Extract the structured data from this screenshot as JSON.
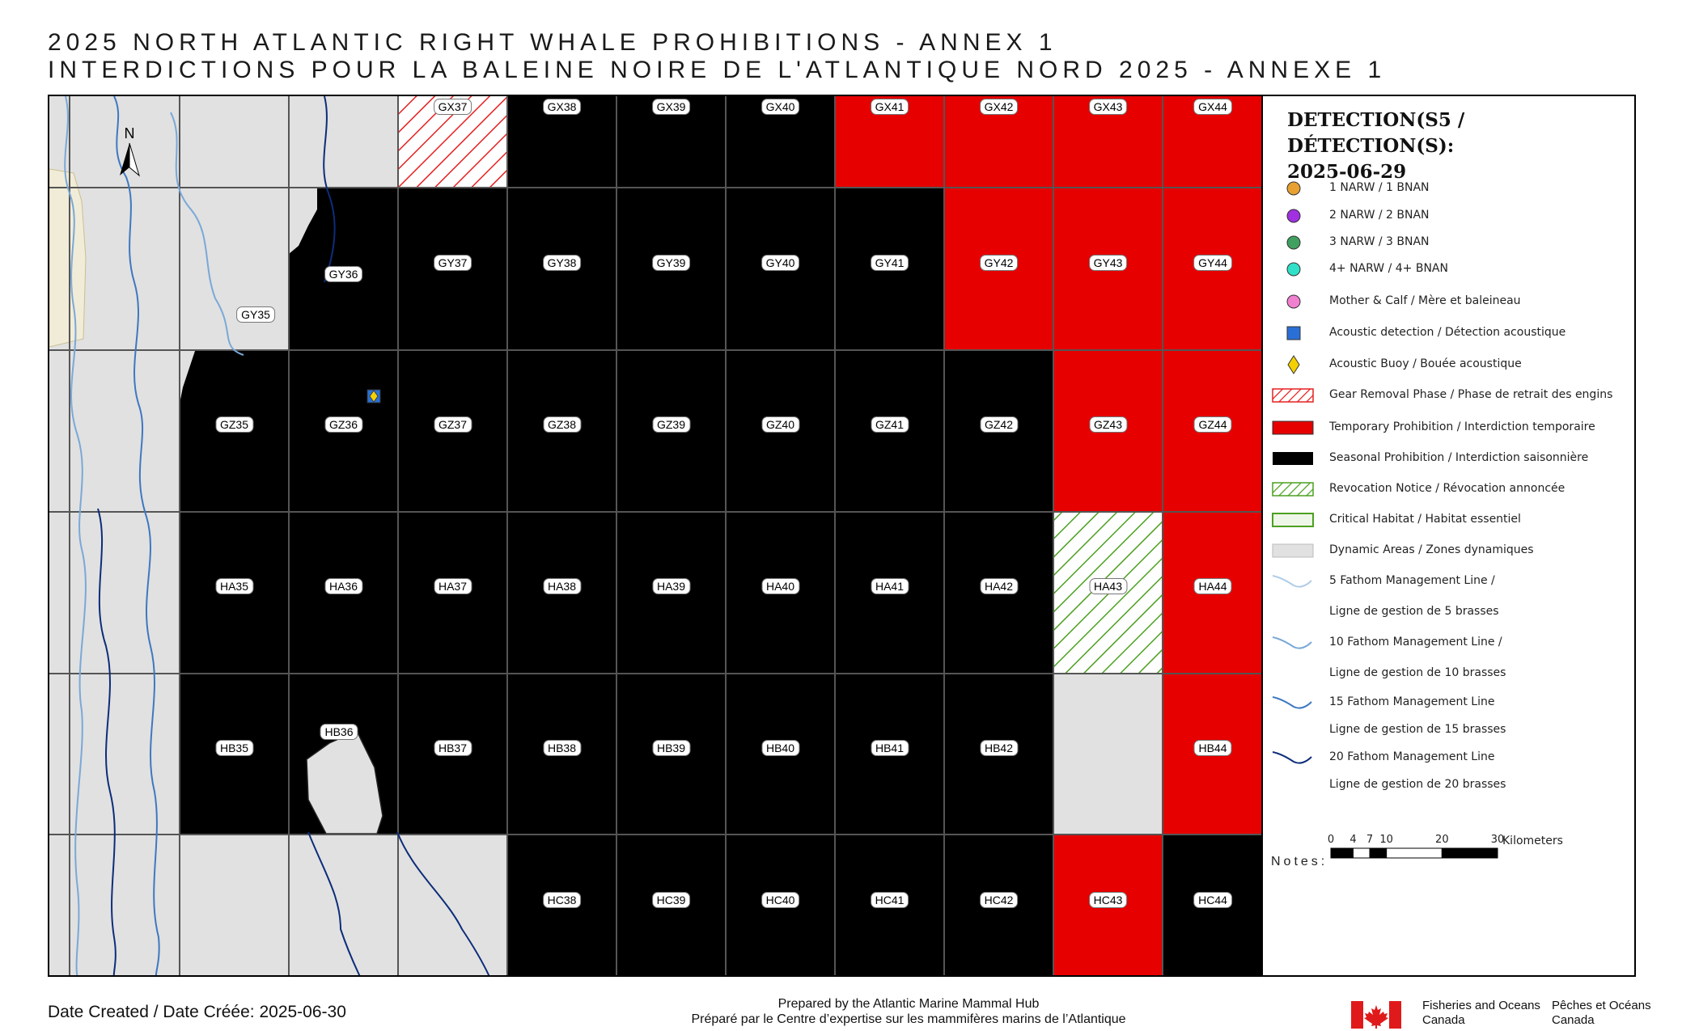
{
  "title_en": "2025 NORTH ATLANTIC RIGHT WHALE PROHIBITIONS - ANNEX 1",
  "title_fr": "INTERDICTIONS POUR LA BALEINE NOIRE DE L'ATLANTIQUE NORD 2025 - ANNEXE 1",
  "north_label": "N",
  "columns": [
    "35",
    "36",
    "37",
    "38",
    "39",
    "40",
    "41",
    "42",
    "43",
    "44"
  ],
  "grid": [
    {
      "row": "GX",
      "cells": [
        {
          "id": "GX35",
          "status": "none",
          "label": false
        },
        {
          "id": "GX36",
          "status": "none",
          "label": false
        },
        {
          "id": "GX37",
          "status": "gear-removal",
          "label": true
        },
        {
          "id": "GX38",
          "status": "seasonal",
          "label": true
        },
        {
          "id": "GX39",
          "status": "seasonal",
          "label": true
        },
        {
          "id": "GX40",
          "status": "seasonal",
          "label": true
        },
        {
          "id": "GX41",
          "status": "temporary",
          "label": true
        },
        {
          "id": "GX42",
          "status": "temporary",
          "label": true
        },
        {
          "id": "GX43",
          "status": "temporary",
          "label": true
        },
        {
          "id": "GX44",
          "status": "temporary",
          "label": true
        }
      ]
    },
    {
      "row": "GY",
      "cells": [
        {
          "id": "GY35",
          "status": "none",
          "label": true
        },
        {
          "id": "GY36",
          "status": "seasonal",
          "label": true
        },
        {
          "id": "GY37",
          "status": "seasonal",
          "label": true
        },
        {
          "id": "GY38",
          "status": "seasonal",
          "label": true
        },
        {
          "id": "GY39",
          "status": "seasonal",
          "label": true
        },
        {
          "id": "GY40",
          "status": "seasonal",
          "label": true
        },
        {
          "id": "GY41",
          "status": "seasonal",
          "label": true
        },
        {
          "id": "GY42",
          "status": "temporary",
          "label": true
        },
        {
          "id": "GY43",
          "status": "temporary",
          "label": true
        },
        {
          "id": "GY44",
          "status": "temporary",
          "label": true
        }
      ]
    },
    {
      "row": "GZ",
      "cells": [
        {
          "id": "GZ34",
          "status": "none",
          "label": false
        },
        {
          "id": "GZ35",
          "status": "seasonal",
          "label": true
        },
        {
          "id": "GZ36",
          "status": "seasonal",
          "label": true
        },
        {
          "id": "GZ37",
          "status": "seasonal",
          "label": true
        },
        {
          "id": "GZ38",
          "status": "seasonal",
          "label": true
        },
        {
          "id": "GZ39",
          "status": "seasonal",
          "label": true
        },
        {
          "id": "GZ40",
          "status": "seasonal",
          "label": true
        },
        {
          "id": "GZ41",
          "status": "seasonal",
          "label": true
        },
        {
          "id": "GZ42",
          "status": "seasonal",
          "label": true
        },
        {
          "id": "GZ43",
          "status": "temporary",
          "label": true
        },
        {
          "id": "GZ44",
          "status": "temporary",
          "label": true
        }
      ]
    },
    {
      "row": "HA",
      "cells": [
        {
          "id": "HA34",
          "status": "none",
          "label": false
        },
        {
          "id": "HA35",
          "status": "seasonal",
          "label": true
        },
        {
          "id": "HA36",
          "status": "seasonal",
          "label": true
        },
        {
          "id": "HA37",
          "status": "seasonal",
          "label": true
        },
        {
          "id": "HA38",
          "status": "seasonal",
          "label": true
        },
        {
          "id": "HA39",
          "status": "seasonal",
          "label": true
        },
        {
          "id": "HA40",
          "status": "seasonal",
          "label": true
        },
        {
          "id": "HA41",
          "status": "seasonal",
          "label": true
        },
        {
          "id": "HA42",
          "status": "seasonal",
          "label": true
        },
        {
          "id": "HA43",
          "status": "revocation",
          "label": true
        },
        {
          "id": "HA44",
          "status": "temporary",
          "label": true
        }
      ]
    },
    {
      "row": "HB",
      "cells": [
        {
          "id": "HB34",
          "status": "none",
          "label": false
        },
        {
          "id": "HB35",
          "status": "seasonal",
          "label": true
        },
        {
          "id": "HB36",
          "status": "seasonal",
          "label": true
        },
        {
          "id": "HB37",
          "status": "seasonal",
          "label": true
        },
        {
          "id": "HB38",
          "status": "seasonal",
          "label": true
        },
        {
          "id": "HB39",
          "status": "seasonal",
          "label": true
        },
        {
          "id": "HB40",
          "status": "seasonal",
          "label": true
        },
        {
          "id": "HB41",
          "status": "seasonal",
          "label": true
        },
        {
          "id": "HB42",
          "status": "seasonal",
          "label": true
        },
        {
          "id": "HB43",
          "status": "dynamic",
          "label": false
        },
        {
          "id": "HB44",
          "status": "temporary",
          "label": true
        }
      ]
    },
    {
      "row": "HC",
      "cells": [
        {
          "id": "HC34",
          "status": "none",
          "label": false
        },
        {
          "id": "HC35",
          "status": "none",
          "label": false
        },
        {
          "id": "HC36",
          "status": "none",
          "label": false
        },
        {
          "id": "HC37",
          "status": "none",
          "label": false
        },
        {
          "id": "HC38",
          "status": "seasonal",
          "label": true
        },
        {
          "id": "HC39",
          "status": "seasonal",
          "label": true
        },
        {
          "id": "HC40",
          "status": "seasonal",
          "label": true
        },
        {
          "id": "HC41",
          "status": "seasonal",
          "label": true
        },
        {
          "id": "HC42",
          "status": "seasonal",
          "label": true
        },
        {
          "id": "HC43",
          "status": "temporary",
          "label": true
        },
        {
          "id": "HC44",
          "status": "seasonal",
          "label": true
        }
      ]
    }
  ],
  "colors": {
    "seasonal": "#000000",
    "temporary": "#e60000",
    "gear_removal_hatch": "#e62020",
    "revocation_hatch": "#4ca020",
    "critical_habitat_border": "#4ca020",
    "dynamic": "#e1e1e1",
    "grid_line": "#555555",
    "detection_1": "#e8a030",
    "detection_2": "#a030e0",
    "detection_3": "#40a060",
    "detection_4": "#30e0c8",
    "mother_calf": "#f080d0",
    "acoustic_detection": "#2a6fd6",
    "acoustic_buoy": "#f5d000",
    "fathom_5": "#b0cce8",
    "fathom_10": "#7aa8d8",
    "fathom_15": "#3e78c0",
    "fathom_20": "#0d2d7a"
  },
  "acoustic_detections": [
    {
      "cell": "GZ36"
    }
  ],
  "legend": {
    "title_line1": "DETECTION(S5 / DÉTECTION(S):",
    "title_line2": "2025-06-29",
    "items": [
      {
        "key": "detection_1",
        "symbol": "circle",
        "label": "1 NARW / 1 BNAN"
      },
      {
        "key": "detection_2",
        "symbol": "circle",
        "label": "2 NARW / 2 BNAN"
      },
      {
        "key": "detection_3",
        "symbol": "circle",
        "label": "3 NARW / 3 BNAN"
      },
      {
        "key": "detection_4",
        "symbol": "circle",
        "label": "4+ NARW / 4+ BNAN"
      },
      {
        "key": "mother_calf",
        "symbol": "circle",
        "label": "Mother & Calf / Mère et baleineau"
      },
      {
        "key": "acoustic_detection",
        "symbol": "square",
        "label": "Acoustic detection / Détection acoustique"
      },
      {
        "key": "acoustic_buoy",
        "symbol": "diamond",
        "label": "Acoustic Buoy / Bouée acoustique"
      },
      {
        "key": "gear_removal_hatch",
        "symbol": "hatch-red",
        "label": "Gear Removal Phase / Phase de retrait des engins"
      },
      {
        "key": "temporary",
        "symbol": "fill-red",
        "label": "Temporary Prohibition / Interdiction temporaire"
      },
      {
        "key": "seasonal",
        "symbol": "fill-black",
        "label": "Seasonal Prohibition / Interdiction saisonnière"
      },
      {
        "key": "revocation_hatch",
        "symbol": "hatch-green",
        "label": "Revocation Notice / Révocation annoncée"
      },
      {
        "key": "critical_habitat_border",
        "symbol": "box-green",
        "label": "Critical Habitat / Habitat essentiel"
      },
      {
        "key": "dynamic",
        "symbol": "fill-grey",
        "label": "Dynamic Areas / Zones dynamiques"
      },
      {
        "key": "fathom_5",
        "symbol": "line",
        "label": "5 Fathom Management Line /"
      },
      {
        "key": "",
        "symbol": "none",
        "label": "Ligne de gestion de 5 brasses"
      },
      {
        "key": "fathom_10",
        "symbol": "line",
        "label": "10 Fathom Management Line /"
      },
      {
        "key": "",
        "symbol": "none",
        "label": "Ligne de gestion de 10 brasses"
      },
      {
        "key": "fathom_15",
        "symbol": "line",
        "label": "15 Fathom Management Line"
      },
      {
        "key": "",
        "symbol": "none",
        "label": "Ligne de gestion de 15 brasses"
      },
      {
        "key": "fathom_20",
        "symbol": "line",
        "label": "20 Fathom Management Line"
      },
      {
        "key": "",
        "symbol": "none",
        "label": "Ligne de gestion de 20 brasses"
      }
    ]
  },
  "scale": {
    "ticks": [
      "0",
      "4",
      "7",
      "10",
      "20",
      "30"
    ],
    "tick_values": [
      0,
      4,
      7,
      10,
      20,
      30
    ],
    "unit": "Kilometers"
  },
  "notes_label": "Notes:",
  "footer": {
    "date_created": "Date Created / Date Créée: 2025-06-30",
    "prepared_en": "Prepared by the Atlantic Marine Mammal Hub",
    "prepared_fr": "Préparé par le Centre d’expertise sur les mammifères marins de l’Atlantique",
    "dfo_en_1": "Fisheries and Oceans",
    "dfo_en_2": "Canada",
    "dfo_fr_1": "Pêches et Océans",
    "dfo_fr_2": "Canada"
  }
}
